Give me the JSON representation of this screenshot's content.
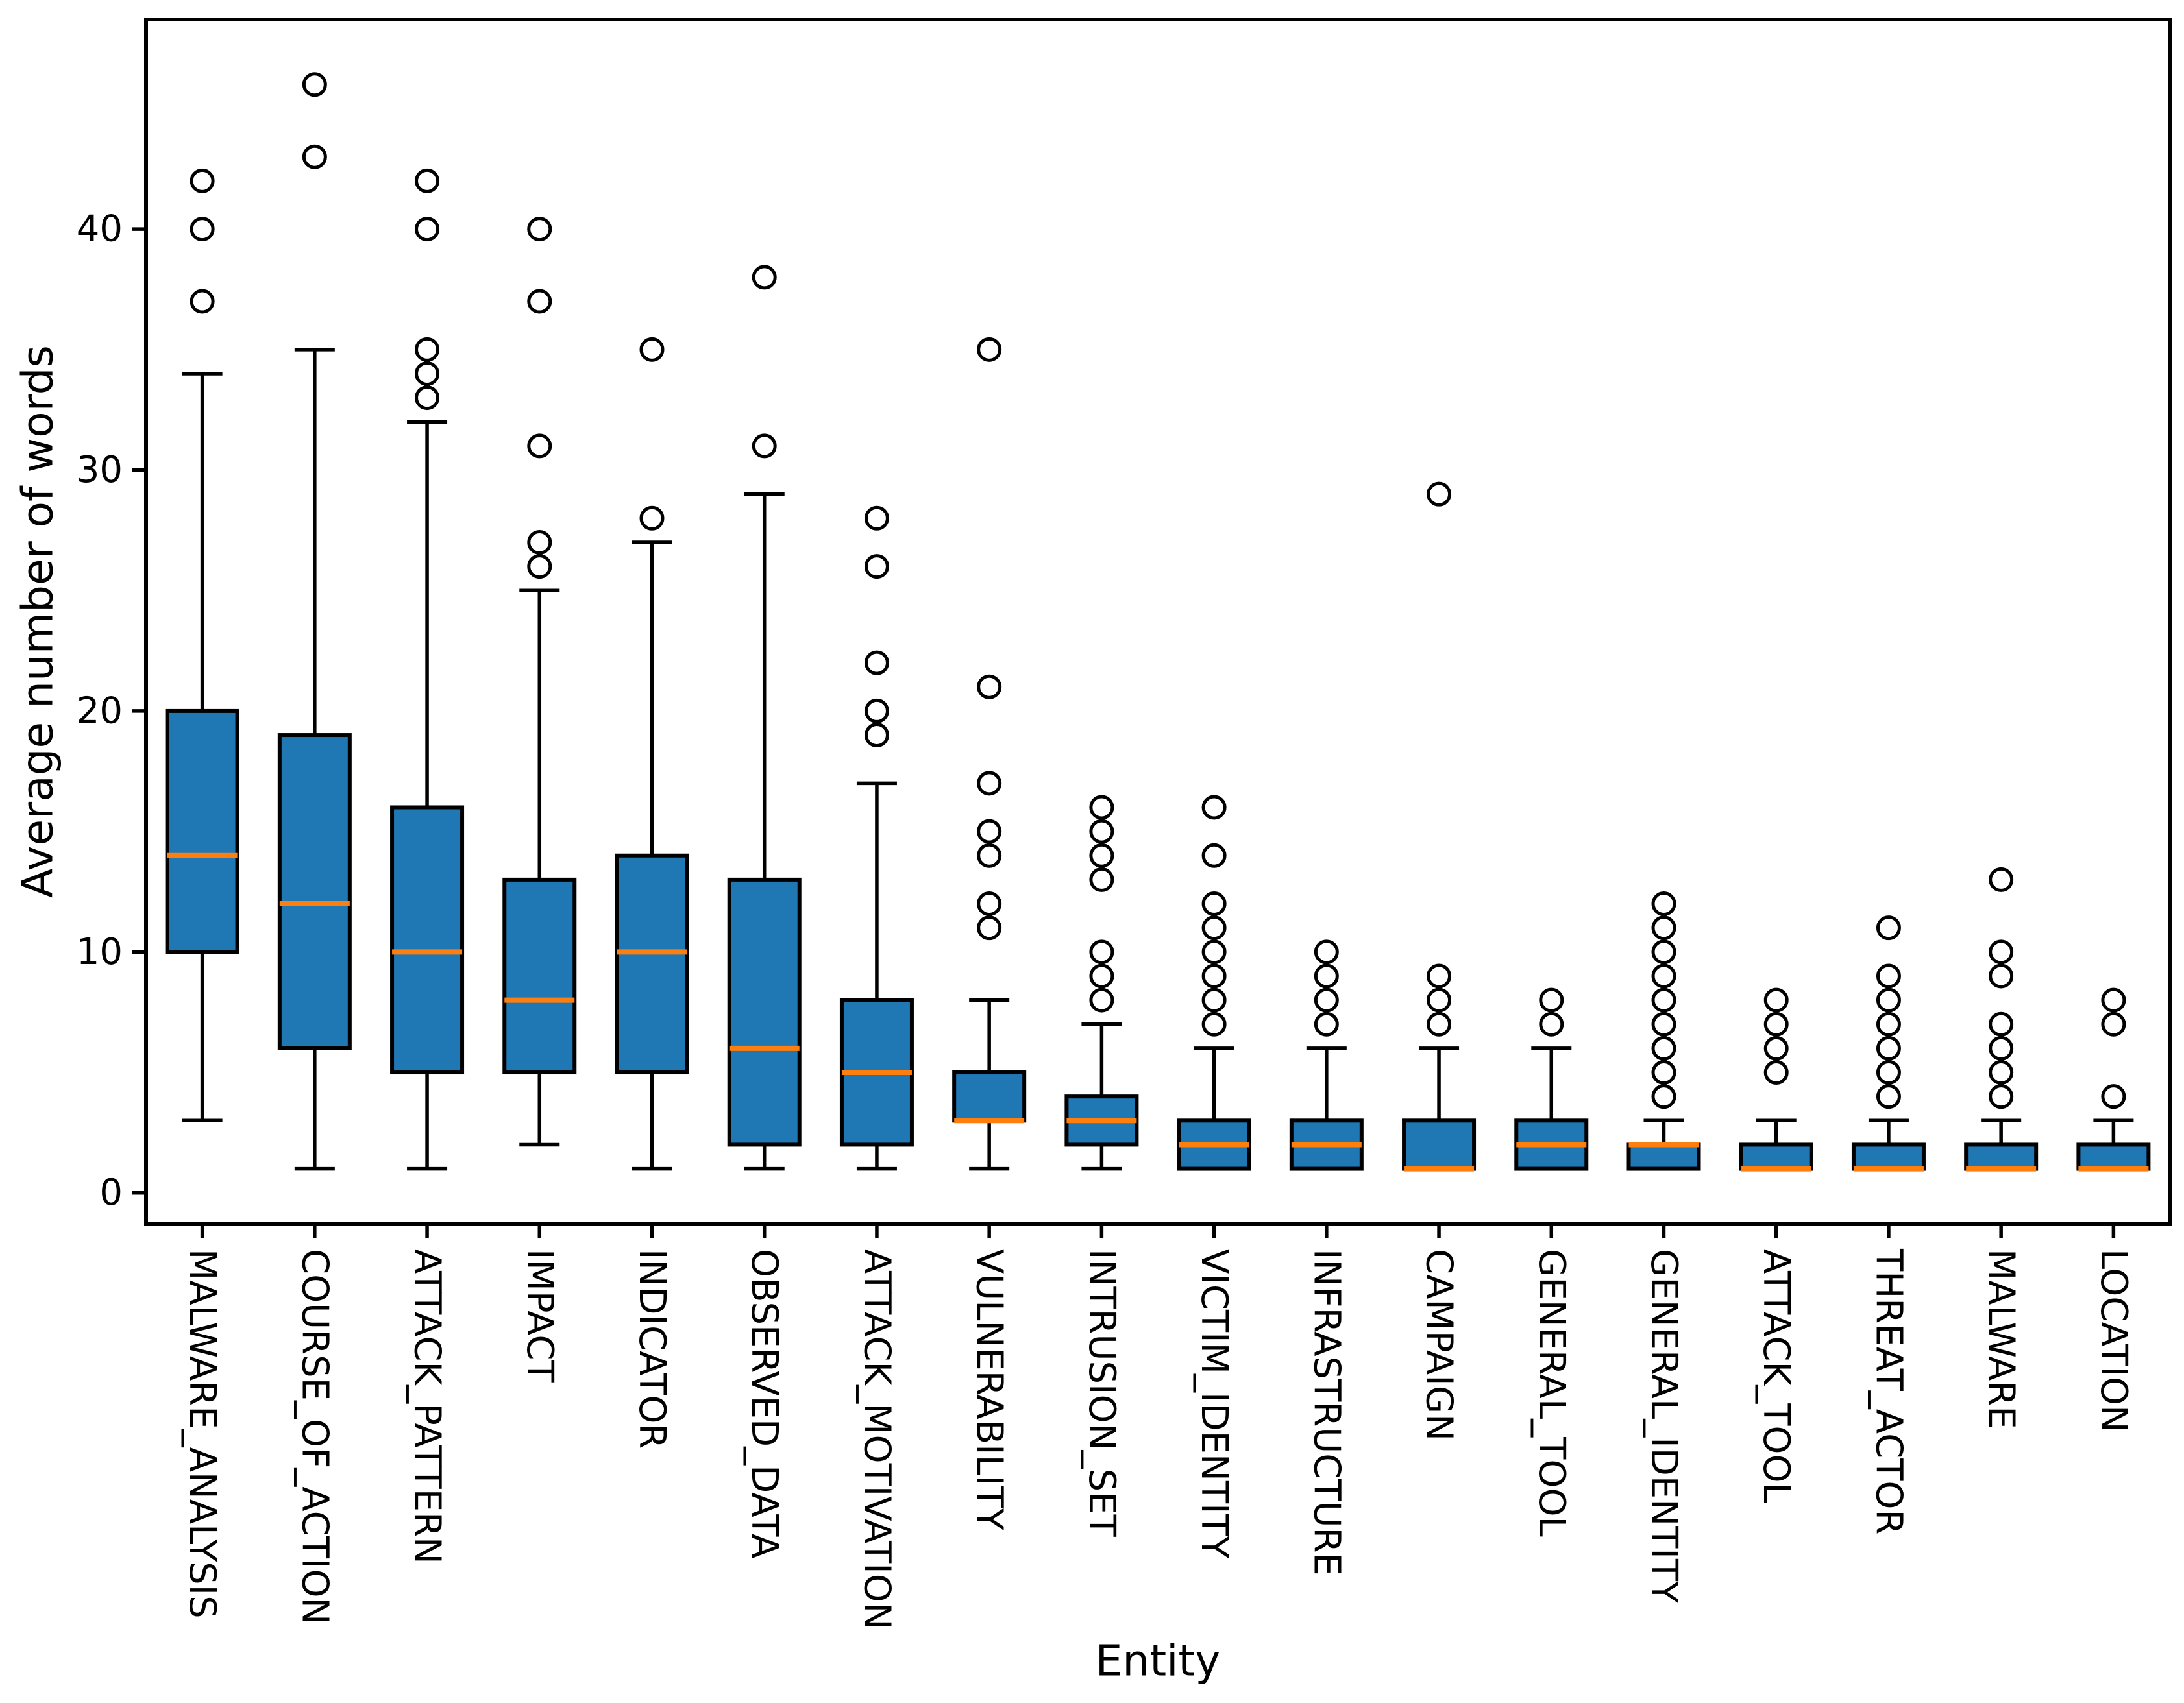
{
  "figure": {
    "background": "#ffffff",
    "box_fill": "#1f77b4",
    "box_edge": "#000000",
    "median_color": "#ff7f0e",
    "axis_color": "#000000"
  },
  "chart_data": {
    "type": "box",
    "title": "",
    "xlabel": "Entity",
    "ylabel": "Average number of words",
    "ylim": [
      -1.3,
      48.7
    ],
    "yticks": [
      0,
      10,
      20,
      30,
      40
    ],
    "grid": false,
    "legend_position": "none",
    "categories": [
      "MALWARE_ANALYSIS",
      "COURSE_OF_ACTION",
      "ATTACK_PATTERN",
      "IMPACT",
      "INDICATOR",
      "OBSERVED_DATA",
      "ATTACK_MOTIVATION",
      "VULNERABILITY",
      "INTRUSION_SET",
      "VICTIM_IDENTITY",
      "INFRASTRUCTURE",
      "CAMPAIGN",
      "GENERAL_TOOL",
      "GENERAL_IDENTITY",
      "ATTACK_TOOL",
      "THREAT_ACTOR",
      "MALWARE",
      "LOCATION"
    ],
    "boxes": [
      {
        "label": "MALWARE_ANALYSIS",
        "whislo": 3,
        "q1": 10,
        "med": 14,
        "q3": 20,
        "whishi": 34,
        "fliers": [
          37,
          40,
          42
        ]
      },
      {
        "label": "COURSE_OF_ACTION",
        "whislo": 1,
        "q1": 6,
        "med": 12,
        "q3": 19,
        "whishi": 35,
        "fliers": [
          43,
          46
        ]
      },
      {
        "label": "ATTACK_PATTERN",
        "whislo": 1,
        "q1": 5,
        "med": 10,
        "q3": 16,
        "whishi": 32,
        "fliers": [
          33,
          34,
          35,
          40,
          42
        ]
      },
      {
        "label": "IMPACT",
        "whislo": 2,
        "q1": 5,
        "med": 8,
        "q3": 13,
        "whishi": 25,
        "fliers": [
          26,
          27,
          31,
          37,
          40
        ]
      },
      {
        "label": "INDICATOR",
        "whislo": 1,
        "q1": 5,
        "med": 10,
        "q3": 14,
        "whishi": 27,
        "fliers": [
          28,
          35
        ]
      },
      {
        "label": "OBSERVED_DATA",
        "whislo": 1,
        "q1": 2,
        "med": 6,
        "q3": 13,
        "whishi": 29,
        "fliers": [
          31,
          38
        ]
      },
      {
        "label": "ATTACK_MOTIVATION",
        "whislo": 1,
        "q1": 2,
        "med": 5,
        "q3": 8,
        "whishi": 17,
        "fliers": [
          19,
          20,
          22,
          26,
          28
        ]
      },
      {
        "label": "VULNERABILITY",
        "whislo": 1,
        "q1": 3,
        "med": 3,
        "q3": 5,
        "whishi": 8,
        "fliers": [
          11,
          12,
          14,
          15,
          17,
          21,
          35
        ]
      },
      {
        "label": "INTRUSION_SET",
        "whislo": 1,
        "q1": 2,
        "med": 3,
        "q3": 4,
        "whishi": 7,
        "fliers": [
          8,
          9,
          10,
          13,
          14,
          15,
          16
        ]
      },
      {
        "label": "VICTIM_IDENTITY",
        "whislo": 1,
        "q1": 1,
        "med": 2,
        "q3": 3,
        "whishi": 6,
        "fliers": [
          7,
          8,
          9,
          10,
          11,
          12,
          14,
          16
        ]
      },
      {
        "label": "INFRASTRUCTURE",
        "whislo": 1,
        "q1": 1,
        "med": 2,
        "q3": 3,
        "whishi": 6,
        "fliers": [
          7,
          8,
          9,
          10
        ]
      },
      {
        "label": "CAMPAIGN",
        "whislo": 1,
        "q1": 1,
        "med": 1,
        "q3": 3,
        "whishi": 6,
        "fliers": [
          7,
          8,
          9,
          29
        ]
      },
      {
        "label": "GENERAL_TOOL",
        "whislo": 1,
        "q1": 1,
        "med": 2,
        "q3": 3,
        "whishi": 6,
        "fliers": [
          7,
          8
        ]
      },
      {
        "label": "GENERAL_IDENTITY",
        "whislo": 1,
        "q1": 1,
        "med": 2,
        "q3": 2,
        "whishi": 3,
        "fliers": [
          4,
          5,
          6,
          7,
          8,
          9,
          10,
          11,
          12
        ]
      },
      {
        "label": "ATTACK_TOOL",
        "whislo": 1,
        "q1": 1,
        "med": 1,
        "q3": 2,
        "whishi": 3,
        "fliers": [
          5,
          6,
          7,
          8
        ]
      },
      {
        "label": "THREAT_ACTOR",
        "whislo": 1,
        "q1": 1,
        "med": 1,
        "q3": 2,
        "whishi": 3,
        "fliers": [
          4,
          5,
          6,
          7,
          8,
          9,
          11
        ]
      },
      {
        "label": "MALWARE",
        "whislo": 1,
        "q1": 1,
        "med": 1,
        "q3": 2,
        "whishi": 3,
        "fliers": [
          4,
          5,
          6,
          7,
          9,
          10,
          13
        ]
      },
      {
        "label": "LOCATION",
        "whislo": 1,
        "q1": 1,
        "med": 1,
        "q3": 2,
        "whishi": 3,
        "fliers": [
          4,
          7,
          8
        ]
      }
    ]
  }
}
